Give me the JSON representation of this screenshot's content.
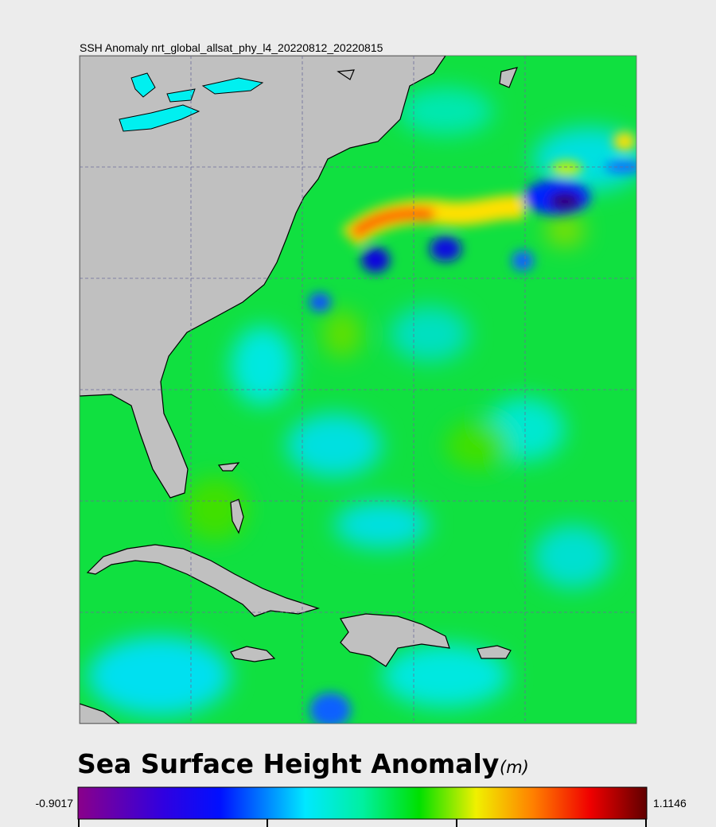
{
  "title": "SSH Anomaly nrt_global_allsat_phy_l4_20220812_20220815",
  "colorbar": {
    "label": "Sea Surface Height Anomaly",
    "unit": "(m)",
    "min": -0.9017,
    "max": 1.1146
  }
}
